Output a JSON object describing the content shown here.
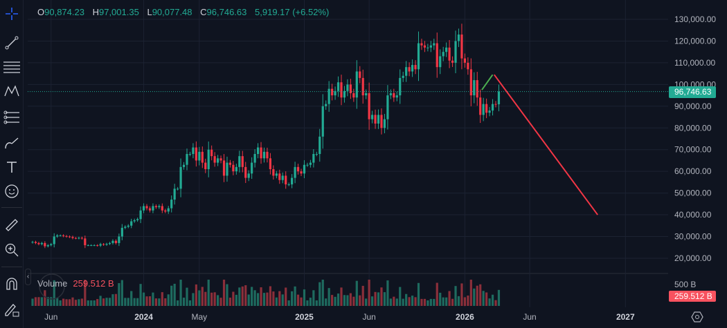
{
  "legend": {
    "o_label": "O",
    "o": "90,874.23",
    "h_label": "H",
    "h": "97,001.35",
    "l_label": "L",
    "l": "90,077.48",
    "c_label": "C",
    "c": "96,746.63",
    "change": "5,919.17 (+6.52%)"
  },
  "volume": {
    "label": "Volume",
    "value": "259.512 B",
    "axis_label": "500 B",
    "badge": "259.512 B"
  },
  "price_badge": "96,746.63",
  "colors": {
    "up": "#22ab94",
    "down": "#f23645",
    "bg": "#0f1420",
    "grid": "#1c2232",
    "line_up": "#4caf50",
    "line_down": "#f23645"
  },
  "toolbar": [
    "crosshair-icon",
    "trend-line-icon",
    "fib-retracement-icon",
    "pattern-icon",
    "projection-icon",
    "brush-icon",
    "text-icon",
    "emoji-icon",
    "ruler-icon",
    "zoom-in-icon",
    "magnet-icon",
    "lock-drawings-icon"
  ],
  "chart_data": {
    "type": "candlestick",
    "title": "",
    "ylim": [
      15000,
      135000
    ],
    "y_ticks": [
      "130,000.00",
      "120,000.00",
      "110,000.00",
      "100,000.00",
      "90,000.00",
      "80,000.00",
      "70,000.00",
      "60,000.00",
      "50,000.00",
      "40,000.00",
      "30,000.00",
      "20,000.00"
    ],
    "x_ticks": [
      {
        "label": "Jun",
        "week": 6,
        "bold": false
      },
      {
        "label": "2024",
        "week": 36,
        "bold": true
      },
      {
        "label": "May",
        "week": 54,
        "bold": false
      },
      {
        "label": "2025",
        "week": 88,
        "bold": true
      },
      {
        "label": "Jun",
        "week": 109,
        "bold": false
      },
      {
        "label": "2026",
        "week": 140,
        "bold": true
      },
      {
        "label": "Jun",
        "week": 161,
        "bold": false
      },
      {
        "label": "2027",
        "week": 192,
        "bold": true
      }
    ],
    "weekly_closes": [
      27500,
      27000,
      26500,
      27000,
      25500,
      26000,
      26500,
      30000,
      30500,
      30500,
      30200,
      30000,
      29800,
      29300,
      29200,
      29400,
      29100,
      26000,
      26000,
      26000,
      26000,
      25800,
      26500,
      26200,
      26600,
      27000,
      28000,
      27000,
      30000,
      34000,
      34500,
      35000,
      37000,
      37500,
      38000,
      42000,
      44000,
      43000,
      42000,
      44000,
      43500,
      44000,
      42000,
      41500,
      43000,
      47000,
      52000,
      52000,
      62000,
      63000,
      68000,
      68000,
      71000,
      65000,
      69000,
      64000,
      61000,
      70000,
      67000,
      64000,
      66000,
      65000,
      58000,
      64000,
      63000,
      60000,
      62000,
      67000,
      62000,
      57000,
      59000,
      64000,
      68000,
      71000,
      66000,
      69000,
      66000,
      61000,
      58000,
      59000,
      56000,
      58000,
      54000,
      54000,
      57000,
      62000,
      60000,
      59000,
      63000,
      63000,
      64000,
      68000,
      68000,
      76000,
      90000,
      91000,
      98000,
      95000,
      97000,
      101000,
      94000,
      97000,
      100000,
      96000,
      94000,
      106000,
      103000,
      95000,
      96000,
      84000,
      86000,
      82000,
      86000,
      80000,
      84000,
      95000,
      96000,
      94000,
      95000,
      103000,
      104000,
      108000,
      106000,
      109000,
      107000,
      119000,
      118000,
      117000,
      117000,
      118000,
      119000,
      108000,
      113000,
      115000,
      117000,
      111000,
      110000,
      120000,
      123000,
      112000,
      110000,
      107000,
      95000,
      102000,
      94000,
      86000,
      91000,
      87000,
      88000,
      91000,
      90874,
      96746
    ],
    "drawings": [
      {
        "name": "projection-up",
        "color": "#4caf50",
        "from": {
          "week": 145.5,
          "price": 97500
        },
        "to": {
          "week": 149,
          "price": 104500
        }
      },
      {
        "name": "projection-down",
        "color": "#f23645",
        "from": {
          "week": 149.5,
          "price": 104500
        },
        "to": {
          "week": 183,
          "price": 40000
        }
      }
    ],
    "current_price": 96746.63,
    "volume_ylim": [
      0,
      1000
    ]
  }
}
